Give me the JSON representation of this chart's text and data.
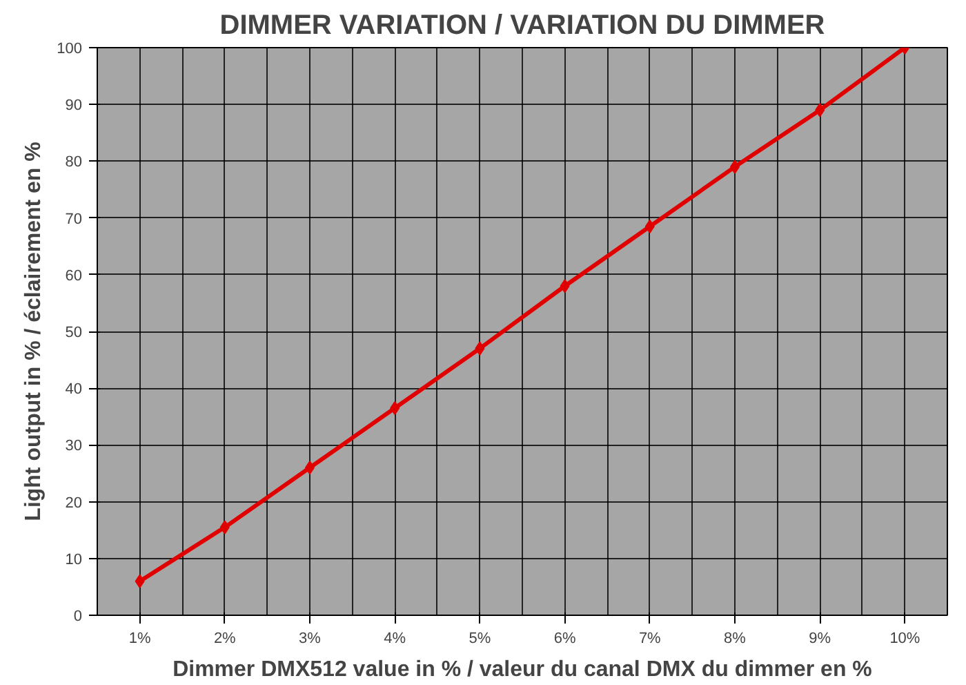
{
  "chart_data": {
    "type": "line",
    "title": "DIMMER VARIATION / VARIATION DU DIMMER",
    "xlabel": "Dimmer DMX512 value in % / valeur du canal DMX du dimmer en %",
    "ylabel": "Light output in % / éclairement en %",
    "categories": [
      "1%",
      "2%",
      "3%",
      "4%",
      "5%",
      "6%",
      "7%",
      "8%",
      "9%",
      "10%"
    ],
    "series": [
      {
        "color": "#e00000",
        "values": [
          6,
          15.5,
          26,
          36.5,
          47,
          58,
          68.5,
          79,
          89,
          100
        ]
      }
    ],
    "ylim": [
      0,
      100
    ],
    "yticks": [
      0,
      10,
      20,
      30,
      40,
      50,
      60,
      70,
      80,
      90,
      100
    ],
    "grid": true,
    "marker": "diamond",
    "line_style": "solid"
  }
}
